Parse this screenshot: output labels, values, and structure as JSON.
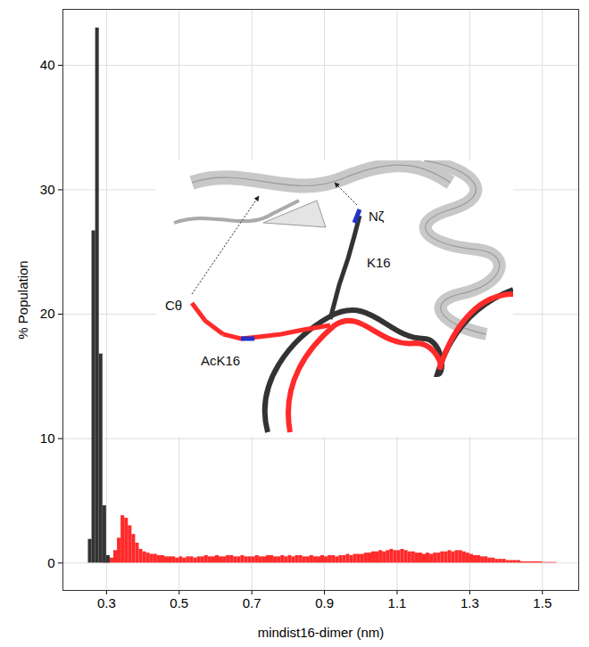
{
  "chart_data": {
    "type": "histogram",
    "x_label": "mindist16-dimer (nm)",
    "y_label": "% Population",
    "xlim": [
      0.18,
      1.6
    ],
    "ylim": [
      -2.2,
      44.5
    ],
    "xticks": [
      0.3,
      0.5,
      0.7,
      0.9,
      1.1,
      1.3,
      1.5
    ],
    "yticks": [
      0,
      10,
      20,
      30,
      40
    ],
    "grid": true,
    "bins": [
      0.24,
      0.25,
      0.26,
      0.27,
      0.28,
      0.29,
      0.3,
      0.31,
      0.32,
      0.33,
      0.34,
      0.35,
      0.36,
      0.37,
      0.38,
      0.39,
      0.4,
      0.41,
      0.42,
      0.43,
      0.44,
      0.45,
      0.46,
      0.47,
      0.48,
      0.49,
      0.5,
      0.51,
      0.52,
      0.53,
      0.54,
      0.55,
      0.56,
      0.57,
      0.58,
      0.59,
      0.6,
      0.61,
      0.62,
      0.63,
      0.64,
      0.65,
      0.66,
      0.67,
      0.68,
      0.69,
      0.7,
      0.71,
      0.72,
      0.73,
      0.74,
      0.75,
      0.76,
      0.77,
      0.78,
      0.79,
      0.8,
      0.81,
      0.82,
      0.83,
      0.84,
      0.85,
      0.86,
      0.87,
      0.88,
      0.89,
      0.9,
      0.91,
      0.92,
      0.93,
      0.94,
      0.95,
      0.96,
      0.97,
      0.98,
      0.99,
      1.0,
      1.01,
      1.02,
      1.03,
      1.04,
      1.05,
      1.06,
      1.07,
      1.08,
      1.09,
      1.1,
      1.11,
      1.12,
      1.13,
      1.14,
      1.15,
      1.16,
      1.17,
      1.18,
      1.19,
      1.2,
      1.21,
      1.22,
      1.23,
      1.24,
      1.25,
      1.26,
      1.27,
      1.28,
      1.29,
      1.3,
      1.31,
      1.32,
      1.33,
      1.34,
      1.35,
      1.36,
      1.37,
      1.38,
      1.39,
      1.4,
      1.41,
      1.42,
      1.43,
      1.44,
      1.45,
      1.46,
      1.47,
      1.48,
      1.49,
      1.5,
      1.51,
      1.52,
      1.53,
      1.54,
      1.55,
      1.56,
      1.57,
      1.58,
      1.59,
      1.6
    ],
    "series": [
      {
        "name": "AcK16",
        "color": "#ff2a2a",
        "values": [
          0,
          0,
          0,
          0,
          0,
          0.05,
          0.1,
          0.4,
          1.0,
          2.0,
          3.8,
          3.6,
          3.0,
          2.3,
          1.6,
          1.1,
          0.9,
          0.8,
          0.7,
          0.7,
          0.6,
          0.6,
          0.5,
          0.5,
          0.5,
          0.4,
          0.5,
          0.4,
          0.5,
          0.5,
          0.4,
          0.5,
          0.5,
          0.6,
          0.5,
          0.5,
          0.6,
          0.5,
          0.5,
          0.6,
          0.6,
          0.5,
          0.5,
          0.6,
          0.5,
          0.5,
          0.5,
          0.6,
          0.5,
          0.5,
          0.6,
          0.6,
          0.5,
          0.5,
          0.6,
          0.5,
          0.6,
          0.5,
          0.6,
          0.6,
          0.5,
          0.5,
          0.6,
          0.5,
          0.5,
          0.6,
          0.5,
          0.6,
          0.6,
          0.5,
          0.6,
          0.6,
          0.7,
          0.6,
          0.7,
          0.7,
          0.7,
          0.8,
          0.8,
          0.9,
          0.9,
          1.0,
          0.9,
          1.0,
          1.1,
          1.0,
          1.0,
          1.1,
          1.0,
          0.9,
          0.9,
          0.8,
          0.8,
          0.7,
          0.8,
          0.7,
          0.8,
          0.8,
          0.9,
          0.9,
          1.0,
          0.9,
          1.0,
          1.0,
          0.9,
          0.8,
          0.7,
          0.6,
          0.6,
          0.5,
          0.5,
          0.4,
          0.4,
          0.3,
          0.3,
          0.3,
          0.2,
          0.2,
          0.2,
          0.2,
          0.1,
          0.1,
          0.1,
          0.1,
          0.1,
          0.1,
          0.05,
          0.05,
          0.05,
          0.05,
          0,
          0,
          0,
          0,
          0,
          0
        ]
      },
      {
        "name": "K16",
        "color": "#333333",
        "values": [
          0,
          1.9,
          26.7,
          43,
          16.8,
          4.6,
          0.6,
          0,
          0,
          0,
          0,
          0,
          0,
          0,
          0,
          0,
          0,
          0,
          0,
          0,
          0,
          0,
          0,
          0,
          0,
          0,
          0,
          0,
          0,
          0,
          0,
          0,
          0,
          0,
          0,
          0,
          0,
          0,
          0,
          0,
          0,
          0,
          0,
          0,
          0,
          0,
          0,
          0,
          0,
          0,
          0,
          0,
          0,
          0,
          0,
          0,
          0,
          0,
          0,
          0,
          0,
          0,
          0,
          0,
          0,
          0,
          0,
          0,
          0,
          0,
          0,
          0,
          0,
          0,
          0,
          0,
          0,
          0,
          0,
          0,
          0,
          0,
          0,
          0,
          0,
          0,
          0,
          0,
          0,
          0,
          0,
          0,
          0,
          0,
          0,
          0,
          0,
          0,
          0,
          0,
          0,
          0,
          0,
          0,
          0,
          0,
          0,
          0,
          0,
          0,
          0,
          0,
          0,
          0,
          0,
          0,
          0,
          0,
          0,
          0,
          0,
          0,
          0,
          0,
          0,
          0,
          0,
          0,
          0,
          0,
          0,
          0,
          0,
          0,
          0,
          0
        ]
      }
    ],
    "annotations": [
      "Nζ",
      "Cθ"
    ]
  }
}
